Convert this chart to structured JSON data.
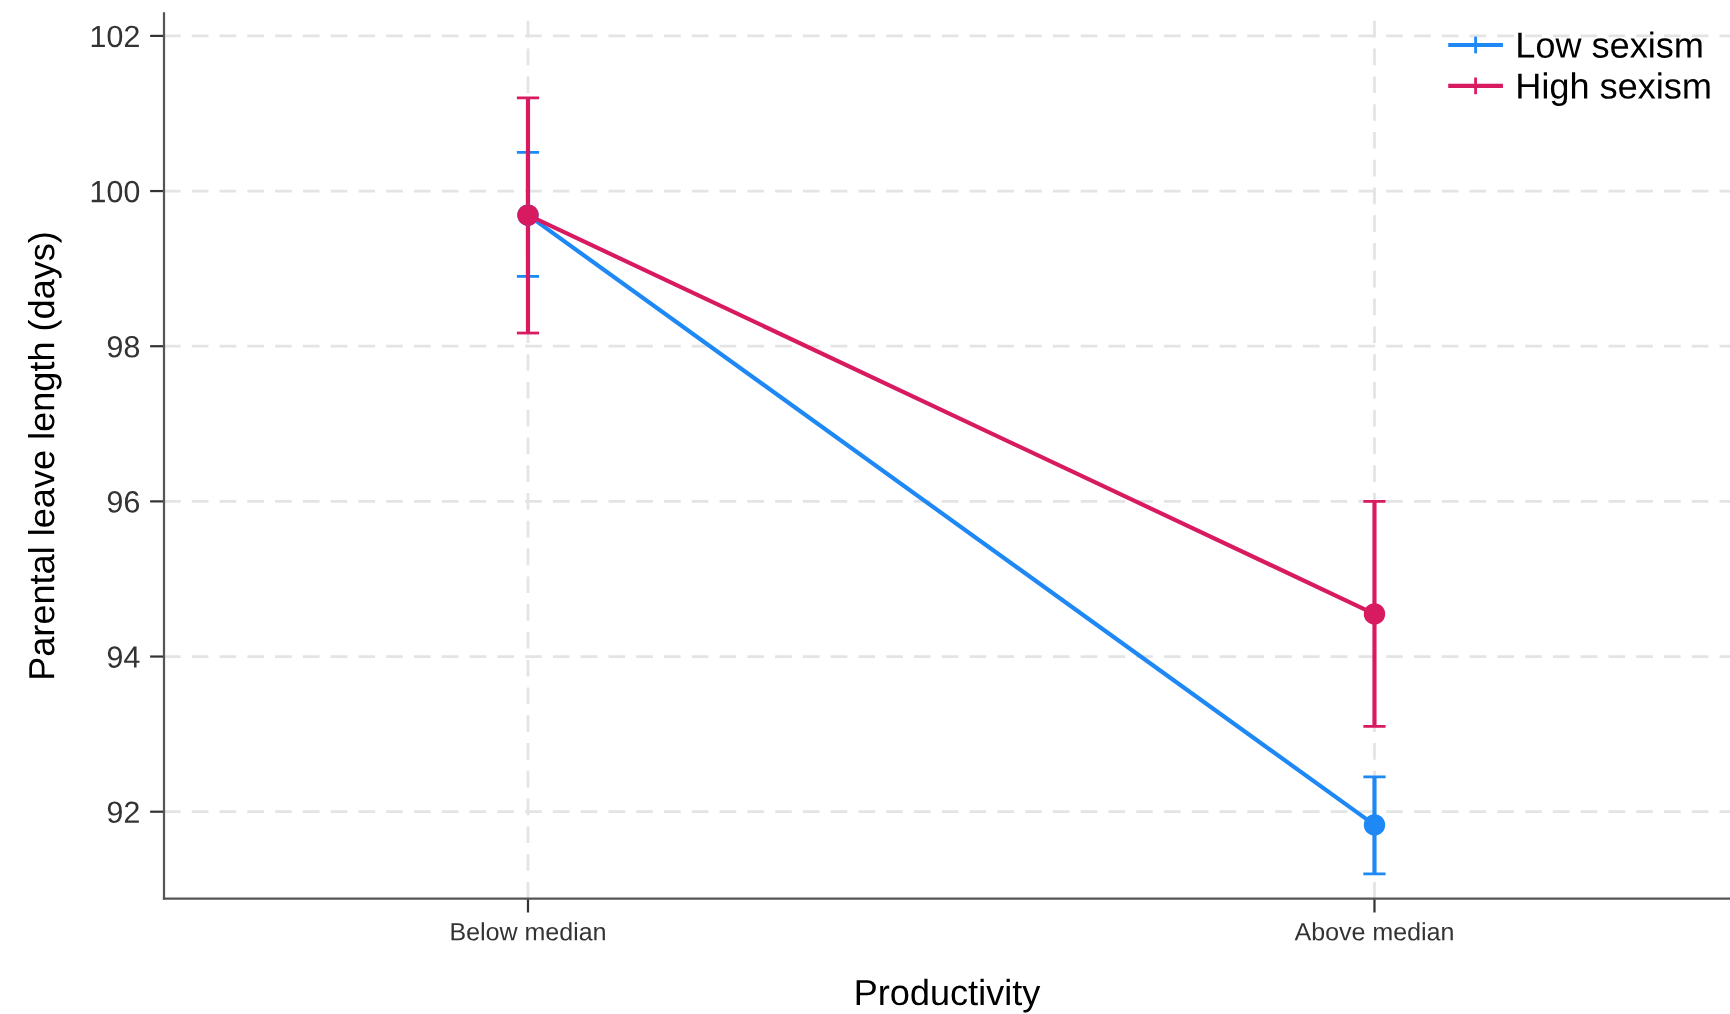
{
  "chart_data": {
    "type": "line",
    "xlabel": "Productivity",
    "ylabel": "Parental leave length (days)",
    "categories": [
      "Below median",
      "Above median"
    ],
    "series": [
      {
        "name": "Low sexism",
        "color": "#1e88f5",
        "values": [
          99.69,
          91.83
        ],
        "errors": [
          [
            98.9,
            100.5
          ],
          [
            91.2,
            92.45
          ]
        ]
      },
      {
        "name": "High sexism",
        "color": "#d81b60",
        "values": [
          99.69,
          94.55
        ],
        "errors": [
          [
            98.17,
            101.2
          ],
          [
            93.1,
            96.0
          ]
        ]
      }
    ],
    "ylim": [
      90.88,
      102.29
    ],
    "yticks": [
      92,
      94,
      96,
      98,
      100,
      102
    ],
    "grid": true,
    "legend": "top right",
    "marker": "circle",
    "line_style": "solid"
  }
}
